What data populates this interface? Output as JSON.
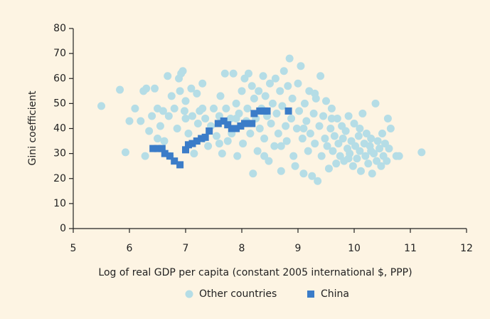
{
  "chart_data": {
    "type": "scatter",
    "x_label": "Log of real GDP per capita (constant 2005 international $, PPP)",
    "y_label": "Gini coefficient",
    "xlim": [
      5,
      12
    ],
    "xticks": [
      5,
      6,
      7,
      8,
      9,
      10,
      11,
      12
    ],
    "ylim": [
      0,
      80
    ],
    "yticks": [
      0,
      10,
      20,
      30,
      40,
      50,
      60,
      70,
      80
    ],
    "legend": "bottom",
    "series": [
      {
        "name": "Other countries",
        "color": "#b5dde6",
        "marker": "circle",
        "x": [
          5.5,
          5.83,
          5.93,
          6.0,
          6.2,
          6.25,
          6.3,
          6.28,
          6.35,
          6.4,
          6.45,
          6.5,
          6.55,
          6.6,
          6.62,
          6.68,
          6.7,
          6.72,
          6.75,
          6.8,
          6.85,
          6.88,
          6.9,
          6.92,
          6.95,
          6.98,
          7.0,
          7.05,
          7.1,
          7.12,
          7.15,
          7.2,
          7.22,
          7.25,
          7.3,
          7.32,
          7.35,
          7.4,
          7.45,
          7.5,
          7.55,
          7.6,
          7.62,
          7.65,
          7.7,
          7.72,
          7.75,
          7.8,
          7.82,
          7.85,
          7.9,
          7.92,
          7.95,
          8.0,
          8.02,
          8.05,
          8.08,
          8.1,
          8.12,
          8.15,
          8.18,
          8.2,
          8.22,
          8.25,
          8.28,
          8.3,
          8.32,
          8.35,
          8.38,
          8.4,
          8.42,
          8.45,
          8.48,
          8.5,
          8.52,
          8.55,
          8.58,
          8.6,
          8.62,
          8.65,
          8.68,
          8.7,
          8.72,
          8.75,
          8.78,
          8.8,
          8.82,
          8.85,
          8.88,
          8.9,
          8.92,
          8.95,
          8.98,
          9.0,
          9.02,
          9.05,
          9.08,
          9.1,
          9.12,
          9.15,
          9.18,
          9.2,
          9.22,
          9.25,
          9.28,
          9.3,
          9.32,
          9.35,
          9.38,
          9.4,
          9.42,
          9.45,
          9.48,
          9.5,
          9.52,
          9.55,
          9.58,
          9.6,
          9.62,
          9.65,
          9.68,
          9.7,
          9.72,
          9.75,
          9.78,
          9.8,
          9.82,
          9.85,
          9.88,
          9.9,
          9.92,
          9.95,
          9.98,
          10.0,
          10.02,
          10.05,
          10.08,
          10.1,
          10.12,
          10.15,
          10.18,
          10.2,
          10.22,
          10.25,
          10.28,
          10.3,
          10.32,
          10.35,
          10.38,
          10.4,
          10.42,
          10.45,
          10.48,
          10.5,
          10.52,
          10.55,
          10.58,
          10.6,
          10.62,
          10.65,
          10.75,
          10.8,
          11.2,
          6.1,
          6.5,
          7.0,
          7.3,
          7.6,
          7.9,
          8.4,
          8.7,
          9.1,
          9.3,
          9.6,
          9.9,
          10.1,
          10.3
        ],
        "values": [
          49,
          55.5,
          30.5,
          43,
          43,
          55,
          56,
          29,
          39,
          45,
          56,
          48,
          41,
          47,
          35,
          61,
          45,
          29,
          53,
          48,
          40,
          60,
          55,
          62,
          63,
          47,
          44,
          38,
          56,
          45,
          30,
          54,
          42,
          47,
          58,
          36,
          44,
          33,
          41,
          48,
          37,
          45,
          53,
          30,
          62,
          48,
          35,
          44,
          38,
          62,
          50,
          29,
          46,
          55,
          34,
          60,
          43,
          48,
          62,
          38,
          57,
          22,
          52,
          44,
          31,
          55,
          40,
          48,
          61,
          36,
          53,
          45,
          27,
          58,
          42,
          50,
          33,
          60,
          46,
          38,
          55,
          23,
          49,
          63,
          41,
          35,
          57,
          68,
          44,
          52,
          29,
          25,
          40,
          58,
          47,
          65,
          36,
          22,
          50,
          43,
          31,
          55,
          38,
          21,
          46,
          34,
          52,
          19,
          41,
          61,
          29,
          45,
          36,
          51,
          33,
          24,
          40,
          48,
          31,
          37,
          26,
          44,
          34,
          29,
          41,
          36,
          27,
          39,
          32,
          45,
          30,
          35,
          25,
          42,
          33,
          28,
          37,
          31,
          23,
          46,
          34,
          29,
          38,
          26,
          33,
          36,
          22,
          30,
          50,
          27,
          35,
          32,
          25,
          38,
          29,
          34,
          27,
          44,
          32,
          40,
          29,
          29,
          30.5,
          48,
          36,
          51,
          48,
          34,
          44,
          29,
          33,
          40,
          54,
          44,
          28,
          40,
          31
        ]
      },
      {
        "name": "China",
        "color": "#3b7cc8",
        "marker": "square",
        "x": [
          6.42,
          6.5,
          6.58,
          6.63,
          6.72,
          6.8,
          6.9,
          7.0,
          7.05,
          7.12,
          7.2,
          7.28,
          7.35,
          7.42,
          7.58,
          7.68,
          7.75,
          7.82,
          7.9,
          7.98,
          8.05,
          8.12,
          8.18,
          8.22,
          8.32,
          8.4,
          8.45,
          8.83
        ],
        "values": [
          32,
          32,
          32,
          30,
          29,
          27,
          25.5,
          31.5,
          33.5,
          34,
          35,
          36,
          36.5,
          39,
          42,
          43,
          41.5,
          40,
          40,
          41,
          42,
          42,
          42,
          46,
          47,
          47,
          47,
          47
        ]
      }
    ]
  }
}
